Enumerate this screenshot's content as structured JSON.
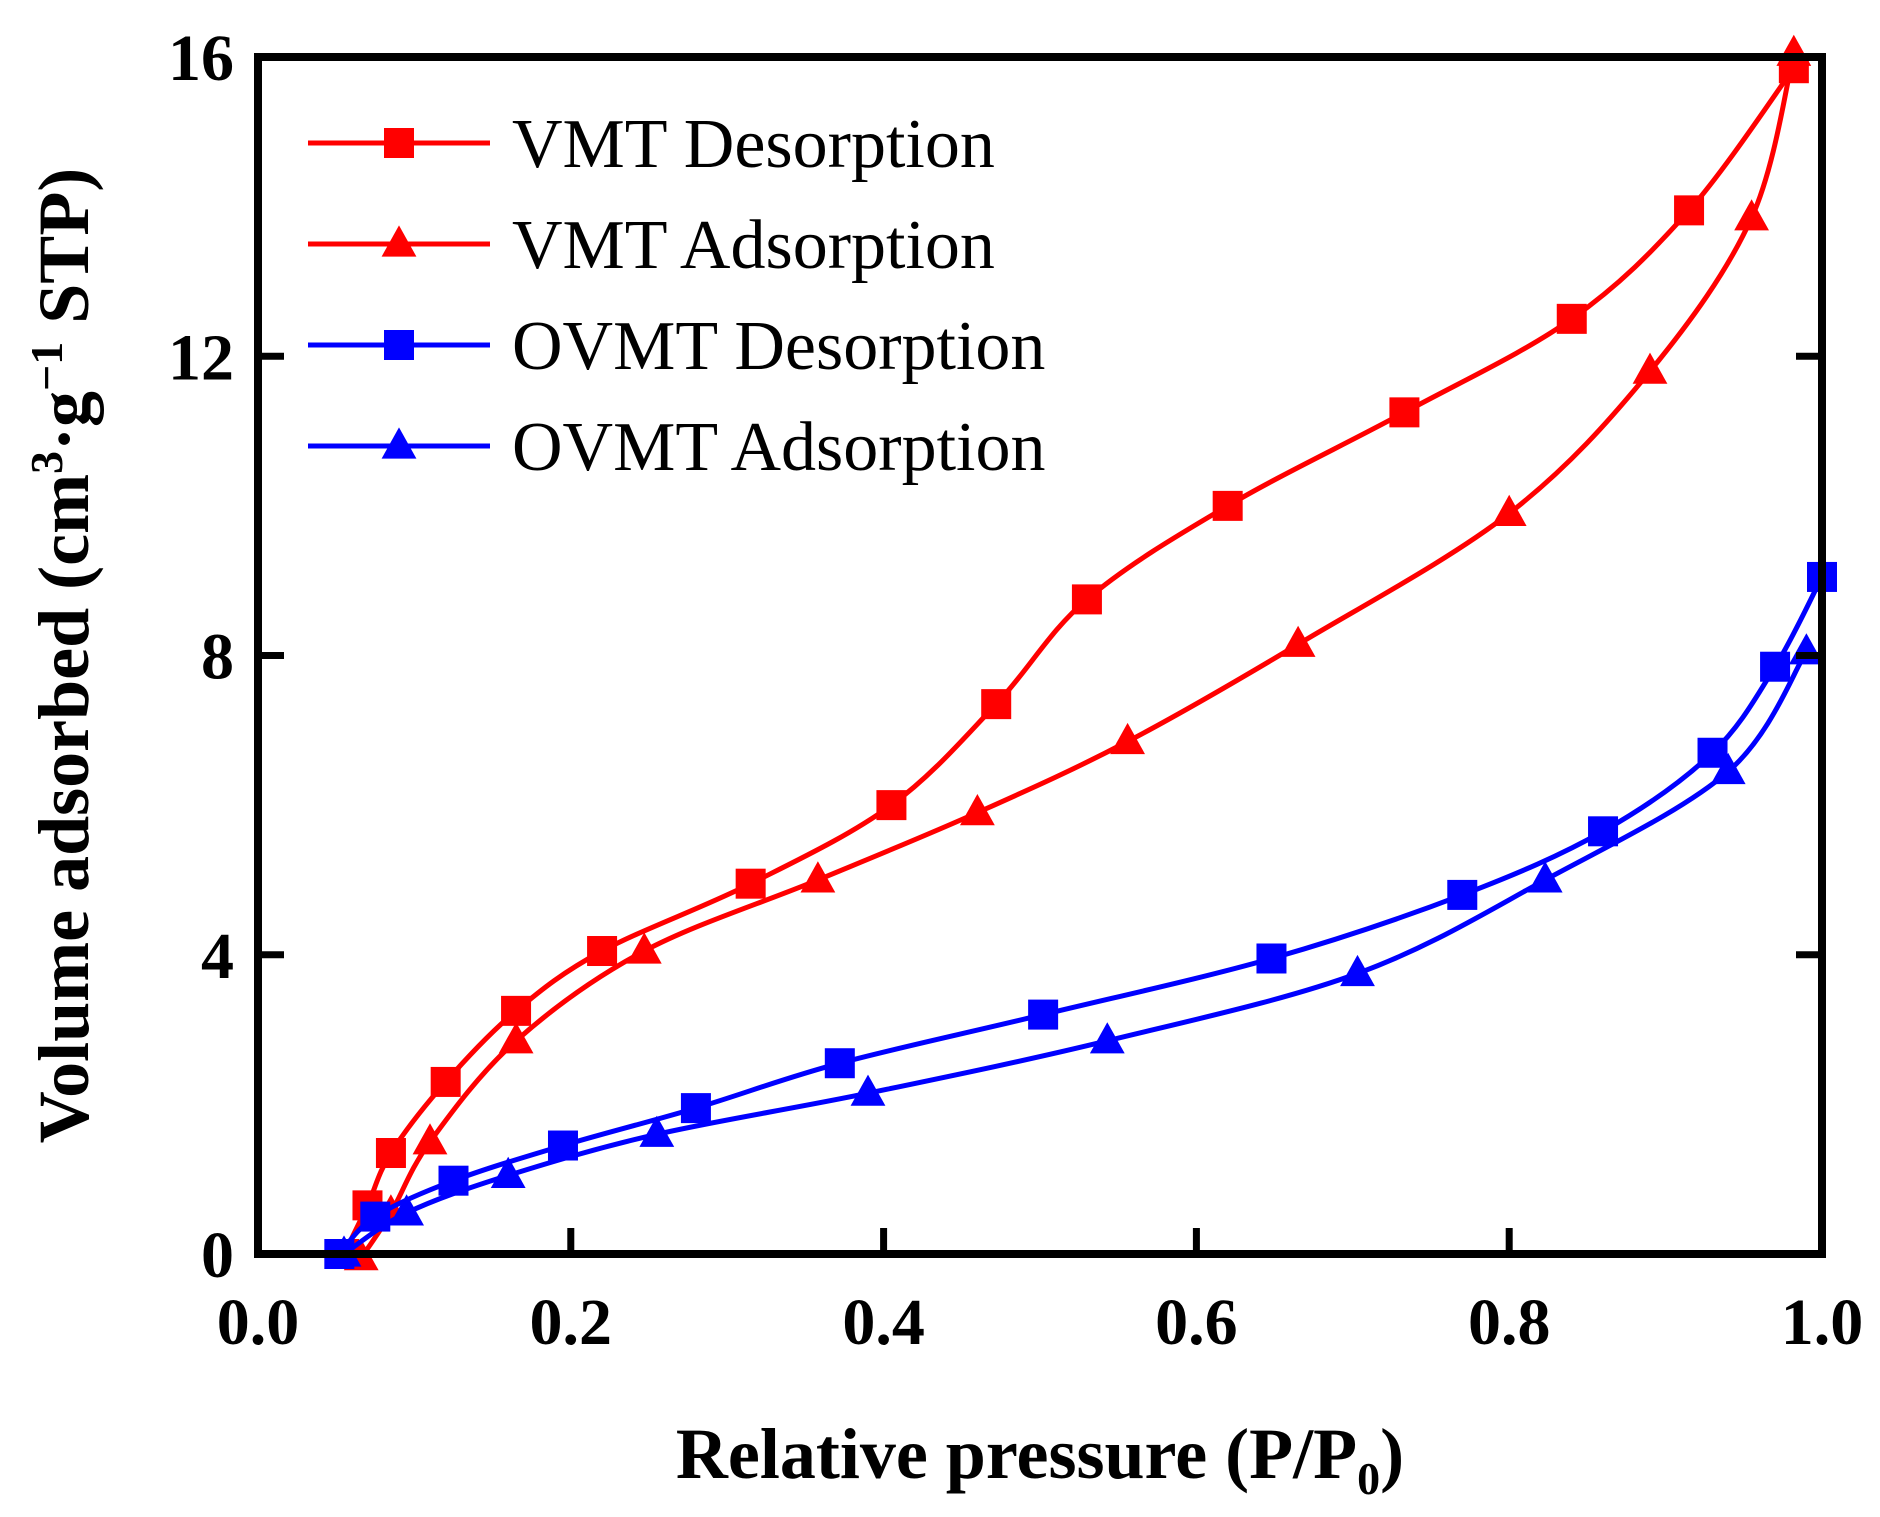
{
  "chart_data": {
    "type": "line",
    "title": "",
    "xlabel": "Relative pressure (P/P0)",
    "xlabel_main": "Relative pressure (P/P",
    "xlabel_sub": "0",
    "xlabel_close": ")",
    "ylabel": "Volume adsorbed (cm3·g−1 STP)",
    "ylabel_part1": "Volume adsorbed (cm",
    "ylabel_sup1": "3",
    "ylabel_part2": "·g",
    "ylabel_sup2": "−1",
    "ylabel_part3": " STP)",
    "xlim": [
      0.0,
      1.0
    ],
    "ylim": [
      0,
      16
    ],
    "x_ticks": [
      0.0,
      0.2,
      0.4,
      0.6,
      0.8,
      1.0
    ],
    "x_tick_labels": [
      "0.0",
      "0.2",
      "0.4",
      "0.6",
      "0.8",
      "1.0"
    ],
    "y_ticks": [
      0,
      4,
      8,
      12,
      16
    ],
    "y_tick_labels": [
      "0",
      "4",
      "8",
      "12",
      "16"
    ],
    "grid": false,
    "legend_position": "top-left",
    "series": [
      {
        "name": "VMT Desorption",
        "color": "#ff0000",
        "marker": "square",
        "x": [
          0.055,
          0.07,
          0.085,
          0.12,
          0.165,
          0.22,
          0.315,
          0.405,
          0.472,
          0.53,
          0.62,
          0.733,
          0.84,
          0.915,
          0.982
        ],
        "y": [
          0.0,
          0.65,
          1.35,
          2.3,
          3.25,
          4.05,
          4.95,
          6.0,
          7.35,
          8.75,
          10.0,
          11.25,
          12.5,
          13.95,
          15.85
        ]
      },
      {
        "name": "VMT Adsorption",
        "color": "#ff0000",
        "marker": "triangle",
        "x": [
          0.066,
          0.085,
          0.11,
          0.165,
          0.247,
          0.358,
          0.46,
          0.556,
          0.665,
          0.8,
          0.89,
          0.955,
          0.982
        ],
        "y": [
          -0.05,
          0.55,
          1.5,
          2.85,
          4.05,
          5.0,
          5.9,
          6.85,
          8.15,
          9.9,
          11.8,
          13.85,
          16.05
        ]
      },
      {
        "name": "OVMT Desorption",
        "color": "#0000ff",
        "marker": "square",
        "x": [
          0.052,
          0.075,
          0.125,
          0.195,
          0.28,
          0.372,
          0.502,
          0.648,
          0.77,
          0.86,
          0.93,
          0.97,
          1.0
        ],
        "y": [
          0.0,
          0.5,
          0.98,
          1.45,
          1.95,
          2.55,
          3.2,
          3.95,
          4.8,
          5.65,
          6.7,
          7.85,
          9.05
        ]
      },
      {
        "name": "OVMT Adsorption",
        "color": "#0000ff",
        "marker": "triangle",
        "x": [
          0.055,
          0.095,
          0.16,
          0.255,
          0.39,
          0.543,
          0.703,
          0.823,
          0.94,
          0.99
        ],
        "y": [
          0.0,
          0.55,
          1.05,
          1.6,
          2.15,
          2.85,
          3.75,
          5.0,
          6.45,
          8.05
        ]
      }
    ]
  }
}
